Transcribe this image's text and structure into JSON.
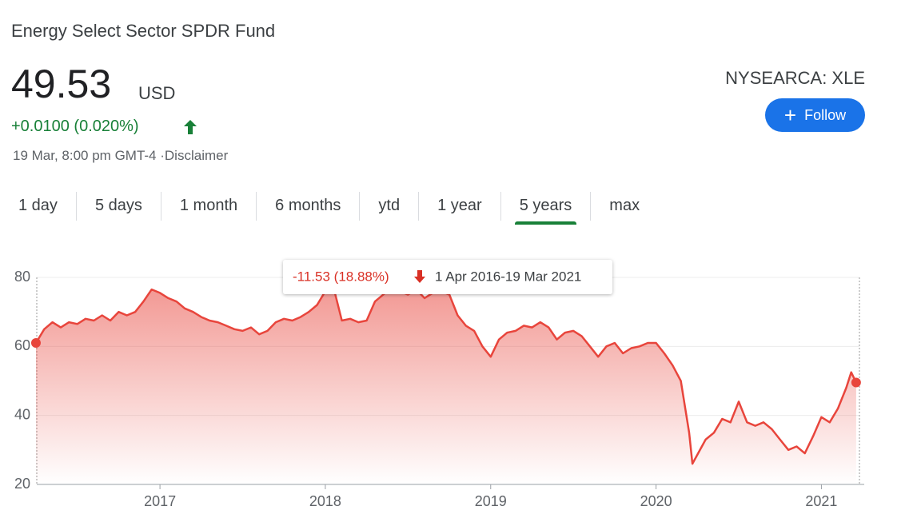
{
  "header": {
    "title": "Energy Select Sector SPDR Fund",
    "price": "49.53",
    "currency": "USD",
    "change": "+0.0100 (0.020%)",
    "timestamp": "19 Mar, 8:00 pm GMT-4",
    "disclaimer": "Disclaimer",
    "exchange": "NYSEARCA: XLE",
    "follow": "Follow"
  },
  "tabs": [
    "1 day",
    "5 days",
    "1 month",
    "6 months",
    "ytd",
    "1 year",
    "5 years",
    "max"
  ],
  "active_tab": 6,
  "chart_data": {
    "type": "line",
    "tooltip_change": "-11.53 (18.88%)",
    "tooltip_range": "1 Apr 2016-19 Mar 2021",
    "color": "#e8453c",
    "x": [
      2016.25,
      2016.3,
      2016.35,
      2016.4,
      2016.45,
      2016.5,
      2016.55,
      2016.6,
      2016.65,
      2016.7,
      2016.75,
      2016.8,
      2016.85,
      2016.9,
      2016.95,
      2017,
      2017.05,
      2017.1,
      2017.15,
      2017.2,
      2017.25,
      2017.3,
      2017.35,
      2017.4,
      2017.45,
      2017.5,
      2017.55,
      2017.6,
      2017.65,
      2017.7,
      2017.75,
      2017.8,
      2017.85,
      2017.9,
      2017.95,
      2018,
      2018.05,
      2018.1,
      2018.15,
      2018.2,
      2018.25,
      2018.3,
      2018.35,
      2018.4,
      2018.45,
      2018.5,
      2018.55,
      2018.6,
      2018.65,
      2018.7,
      2018.75,
      2018.8,
      2018.85,
      2018.9,
      2018.95,
      2019,
      2019.05,
      2019.1,
      2019.15,
      2019.2,
      2019.25,
      2019.3,
      2019.35,
      2019.4,
      2019.45,
      2019.5,
      2019.55,
      2019.6,
      2019.65,
      2019.7,
      2019.75,
      2019.8,
      2019.85,
      2019.9,
      2019.95,
      2020,
      2020.05,
      2020.1,
      2020.15,
      2020.2,
      2020.22,
      2020.3,
      2020.35,
      2020.4,
      2020.45,
      2020.5,
      2020.55,
      2020.6,
      2020.65,
      2020.7,
      2020.75,
      2020.8,
      2020.85,
      2020.9,
      2020.95,
      2021,
      2021.05,
      2021.1,
      2021.15,
      2021.18,
      2021.21
    ],
    "values": [
      61,
      65,
      67,
      65.5,
      67,
      66.5,
      68,
      67.5,
      69,
      67.5,
      70,
      69,
      70,
      73,
      76.5,
      75.5,
      74,
      73,
      71,
      70,
      68.5,
      67.5,
      67,
      66,
      65,
      64.5,
      65.5,
      63.5,
      64.5,
      67,
      68,
      67.5,
      68.5,
      70,
      72,
      76,
      77,
      67.5,
      68,
      67,
      67.5,
      73,
      75,
      77,
      76,
      75,
      76.5,
      74,
      75.5,
      76,
      75,
      69,
      66,
      64.5,
      60,
      57,
      62,
      64,
      64.5,
      66,
      65.5,
      67,
      65.5,
      62,
      64,
      64.5,
      63,
      60,
      57,
      60,
      61,
      58,
      59.5,
      60,
      61,
      61,
      58,
      54.5,
      50,
      35,
      26,
      33,
      35,
      39,
      38,
      44,
      38,
      37,
      38,
      36,
      33,
      30,
      31,
      29,
      34,
      39.5,
      38,
      42,
      48,
      52.5,
      49.53
    ],
    "xlim": [
      2016.255,
      2021.23
    ],
    "ylim": [
      20,
      80
    ],
    "xticks": [
      2017,
      2018,
      2019,
      2020,
      2021
    ],
    "yticks": [
      20,
      40,
      60,
      80
    ],
    "grid": true
  }
}
